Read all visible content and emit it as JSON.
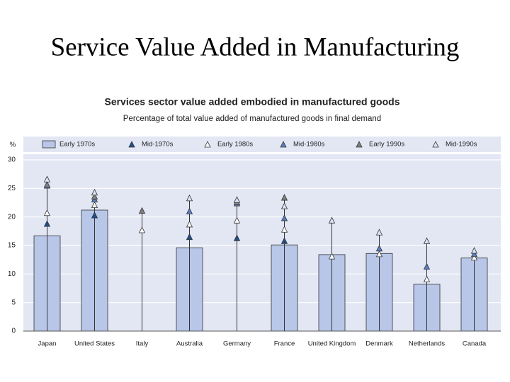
{
  "slide_title": "Service Value Added in Manufacturing",
  "chart_data": {
    "type": "bar",
    "title": "Services sector value added embodied in manufactured goods",
    "subtitle": "Percentage of total value added of manufactured goods in final demand",
    "y_label": "%",
    "categories": [
      "Japan",
      "United States",
      "Italy",
      "Australia",
      "Germany",
      "France",
      "United Kingdom",
      "Denmark",
      "Netherlands",
      "Canada"
    ],
    "series": [
      {
        "name": "Early 1970s",
        "marker": "bar",
        "color": "#b8c6e8",
        "values": [
          16.7,
          21.2,
          null,
          14.6,
          null,
          15.1,
          13.4,
          13.6,
          8.2,
          12.8
        ]
      },
      {
        "name": "Mid-1970s",
        "marker": "triangle",
        "color": "#1f4e8c",
        "values": [
          18.7,
          20.2,
          null,
          16.4,
          16.2,
          15.7,
          null,
          null,
          null,
          null
        ]
      },
      {
        "name": "Early 1980s",
        "marker": "triangle",
        "color": "#ffffff",
        "values": [
          20.6,
          22.0,
          17.6,
          18.6,
          19.3,
          17.7,
          13.0,
          13.4,
          9.0,
          12.8
        ]
      },
      {
        "name": "Mid-1980s",
        "marker": "triangle",
        "color": "#5a7fc0",
        "values": [
          25.4,
          23.0,
          null,
          20.9,
          22.3,
          19.7,
          null,
          14.4,
          11.2,
          13.4
        ]
      },
      {
        "name": "Early 1990s",
        "marker": "triangle",
        "color": "#7f7f7f",
        "values": [
          25.6,
          23.5,
          21.0,
          null,
          22.5,
          23.3,
          null,
          null,
          null,
          null
        ]
      },
      {
        "name": "Mid-1990s",
        "marker": "triangle",
        "color": "#d9e4f5",
        "values": [
          26.5,
          24.2,
          null,
          23.2,
          22.9,
          21.8,
          19.3,
          17.2,
          15.7,
          14.0
        ]
      }
    ],
    "ylim": [
      0,
      30
    ],
    "yticks": [
      0,
      5,
      10,
      15,
      20,
      25,
      30
    ],
    "grid": true,
    "legend": "top"
  }
}
